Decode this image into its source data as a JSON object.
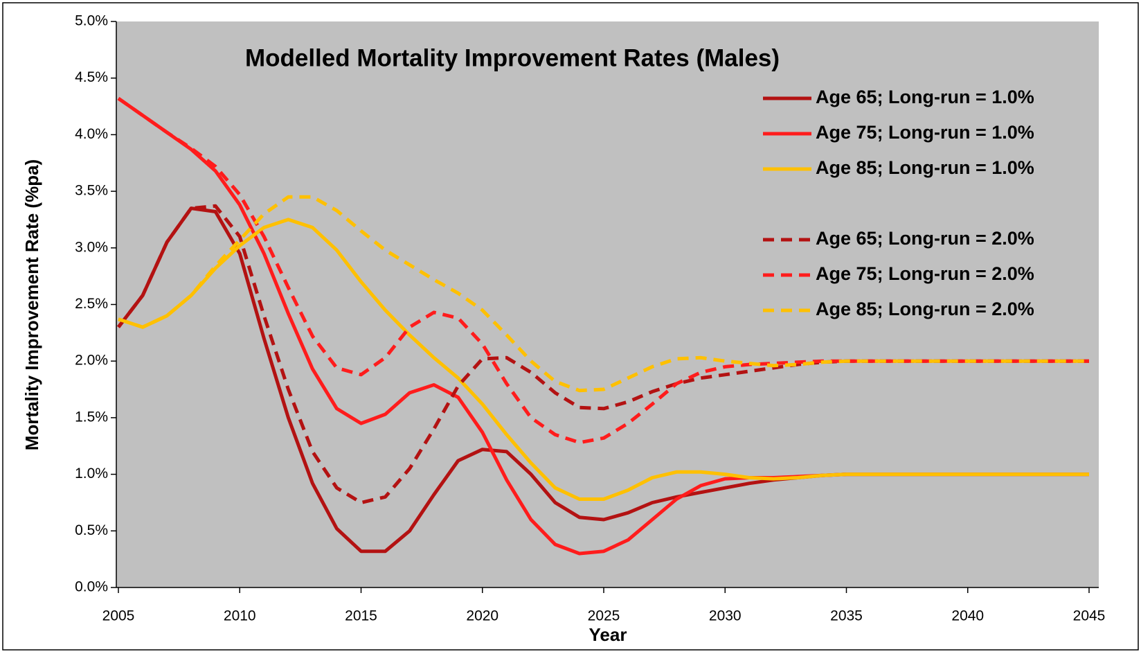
{
  "chart_data": {
    "type": "line",
    "title": "Modelled Mortality Improvement Rates (Males)",
    "x_label": "Year",
    "y_label": "Mortality Improvement Rate (%pa)",
    "x": [
      2005,
      2006,
      2007,
      2008,
      2009,
      2010,
      2011,
      2012,
      2013,
      2014,
      2015,
      2016,
      2017,
      2018,
      2019,
      2020,
      2021,
      2022,
      2023,
      2024,
      2025,
      2026,
      2027,
      2028,
      2029,
      2030,
      2031,
      2032,
      2033,
      2034,
      2035,
      2036,
      2037,
      2038,
      2039,
      2040,
      2041,
      2042,
      2043,
      2044,
      2045
    ],
    "xlim": [
      2005,
      2045
    ],
    "xticks": [
      2005,
      2010,
      2015,
      2020,
      2025,
      2030,
      2035,
      2040,
      2045
    ],
    "ylim": [
      0,
      5
    ],
    "yticks": [
      {
        "value": 0,
        "label": "0.0%"
      },
      {
        "value": 0.5,
        "label": "0.5%"
      },
      {
        "value": 1,
        "label": "1.0%"
      },
      {
        "value": 1.5,
        "label": "1.5%"
      },
      {
        "value": 2,
        "label": "2.0%"
      },
      {
        "value": 2.5,
        "label": "2.5%"
      },
      {
        "value": 3,
        "label": "3.0%"
      },
      {
        "value": 3.5,
        "label": "3.5%"
      },
      {
        "value": 4,
        "label": "4.0%"
      },
      {
        "value": 4.5,
        "label": "4.5%"
      },
      {
        "value": 5,
        "label": "5.0%"
      }
    ],
    "plot_background": "#c0c0c0",
    "legend": "top-right",
    "series": [
      {
        "name": "Age 65; Long-run = 1.0%",
        "color": "#b31212",
        "line_style": "solid",
        "values": [
          2.3,
          2.58,
          3.05,
          3.35,
          3.32,
          2.95,
          2.2,
          1.5,
          0.92,
          0.52,
          0.32,
          0.32,
          0.5,
          0.82,
          1.12,
          1.22,
          1.2,
          1.0,
          0.75,
          0.62,
          0.6,
          0.66,
          0.75,
          0.8,
          0.84,
          0.88,
          0.92,
          0.95,
          0.97,
          0.99,
          1,
          1,
          1,
          1,
          1,
          1,
          1,
          1,
          1,
          1,
          1
        ]
      },
      {
        "name": "Age 75; Long-run = 1.0%",
        "color": "#ff1c1c",
        "line_style": "solid",
        "values": [
          4.32,
          4.17,
          4.02,
          3.87,
          3.68,
          3.38,
          2.95,
          2.42,
          1.93,
          1.58,
          1.45,
          1.53,
          1.72,
          1.79,
          1.68,
          1.37,
          0.95,
          0.6,
          0.38,
          0.3,
          0.32,
          0.42,
          0.6,
          0.78,
          0.9,
          0.96,
          0.97,
          0.97,
          0.98,
          0.99,
          1,
          1,
          1,
          1,
          1,
          1,
          1,
          1,
          1,
          1,
          1
        ]
      },
      {
        "name": "Age 85; Long-run = 1.0%",
        "color": "#ffc000",
        "line_style": "solid",
        "values": [
          2.37,
          2.3,
          2.4,
          2.58,
          2.82,
          3.02,
          3.18,
          3.25,
          3.18,
          2.98,
          2.7,
          2.45,
          2.23,
          2.03,
          1.85,
          1.62,
          1.35,
          1.1,
          0.88,
          0.78,
          0.78,
          0.86,
          0.97,
          1.02,
          1.02,
          1.0,
          0.97,
          0.96,
          0.97,
          0.99,
          1,
          1,
          1,
          1,
          1,
          1,
          1,
          1,
          1,
          1,
          1
        ]
      },
      {
        "name": "Age 65; Long-run = 2.0%",
        "color": "#b31212",
        "line_style": "dashed",
        "values": [
          2.3,
          2.58,
          3.05,
          3.35,
          3.37,
          3.1,
          2.4,
          1.75,
          1.2,
          0.88,
          0.75,
          0.8,
          1.05,
          1.4,
          1.78,
          2.02,
          2.03,
          1.9,
          1.72,
          1.59,
          1.58,
          1.64,
          1.73,
          1.8,
          1.85,
          1.88,
          1.91,
          1.94,
          1.97,
          1.99,
          2,
          2,
          2,
          2,
          2,
          2,
          2,
          2,
          2,
          2,
          2
        ]
      },
      {
        "name": "Age 75; Long-run = 2.0%",
        "color": "#ff1c1c",
        "line_style": "dashed",
        "values": [
          4.32,
          4.17,
          4.02,
          3.88,
          3.72,
          3.47,
          3.1,
          2.65,
          2.22,
          1.94,
          1.88,
          2.03,
          2.3,
          2.43,
          2.38,
          2.15,
          1.8,
          1.5,
          1.35,
          1.28,
          1.32,
          1.45,
          1.62,
          1.8,
          1.9,
          1.95,
          1.97,
          1.98,
          1.99,
          2,
          2,
          2,
          2,
          2,
          2,
          2,
          2,
          2,
          2,
          2,
          2
        ]
      },
      {
        "name": "Age 85; Long-run = 2.0%",
        "color": "#ffc000",
        "line_style": "dashed",
        "values": [
          2.37,
          2.3,
          2.4,
          2.58,
          2.84,
          3.07,
          3.3,
          3.45,
          3.45,
          3.33,
          3.15,
          2.98,
          2.85,
          2.72,
          2.6,
          2.45,
          2.23,
          2.0,
          1.82,
          1.74,
          1.75,
          1.85,
          1.95,
          2.02,
          2.03,
          2.0,
          1.98,
          1.96,
          1.97,
          1.99,
          2,
          2,
          2,
          2,
          2,
          2,
          2,
          2,
          2,
          2,
          2
        ]
      }
    ]
  }
}
